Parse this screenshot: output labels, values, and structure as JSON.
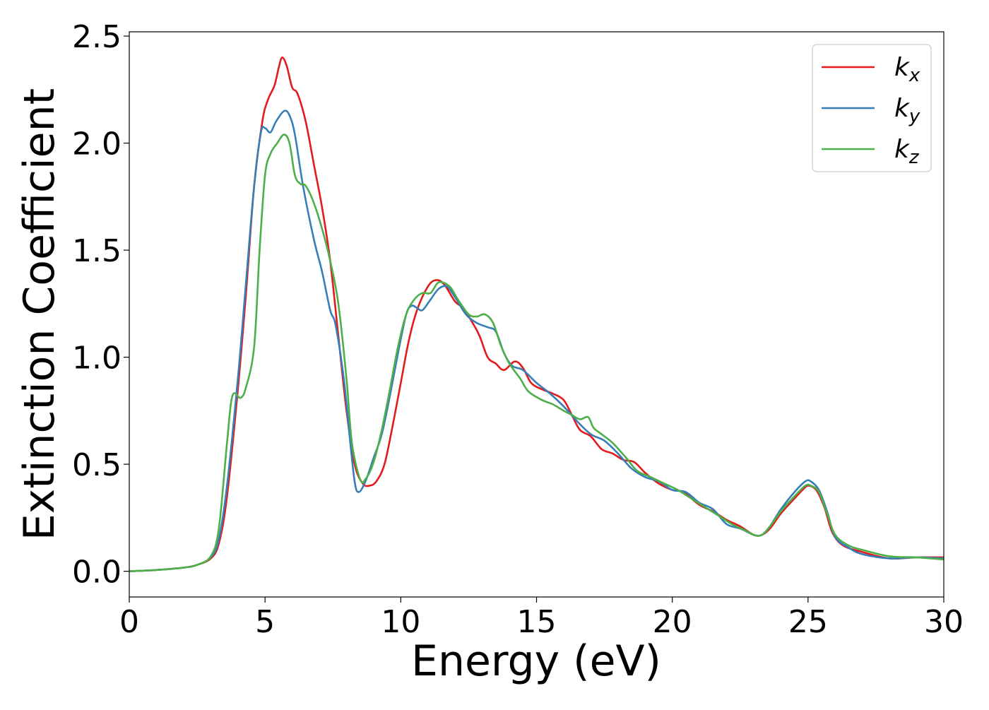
{
  "chart_data": {
    "type": "line",
    "title": "",
    "xlabel": "Energy (eV)",
    "ylabel": "Extinction Coefficient",
    "xlim": [
      0,
      30
    ],
    "ylim": [
      -0.12,
      2.52
    ],
    "xticks": [
      0,
      5,
      10,
      15,
      20,
      25,
      30
    ],
    "xtick_labels": [
      "0",
      "5",
      "10",
      "15",
      "20",
      "25",
      "30"
    ],
    "yticks": [
      0.0,
      0.5,
      1.0,
      1.5,
      2.0,
      2.5
    ],
    "ytick_labels": [
      "0.0",
      "0.5",
      "1.0",
      "1.5",
      "2.0",
      "2.5"
    ],
    "grid": false,
    "legend_position": "top-right",
    "series": [
      {
        "name": "k_x",
        "legend_base": "k",
        "legend_sub": "x",
        "color": "#e41a1c",
        "points": [
          [
            0,
            0.0
          ],
          [
            1,
            0.006
          ],
          [
            2,
            0.017
          ],
          [
            2.5,
            0.03
          ],
          [
            3,
            0.06
          ],
          [
            3.3,
            0.13
          ],
          [
            3.6,
            0.35
          ],
          [
            4,
            0.85
          ],
          [
            4.3,
            1.3
          ],
          [
            4.6,
            1.8
          ],
          [
            4.9,
            2.1
          ],
          [
            5.1,
            2.2
          ],
          [
            5.35,
            2.27
          ],
          [
            5.5,
            2.35
          ],
          [
            5.63,
            2.4
          ],
          [
            5.8,
            2.36
          ],
          [
            6,
            2.26
          ],
          [
            6.2,
            2.23
          ],
          [
            6.5,
            2.1
          ],
          [
            6.8,
            1.9
          ],
          [
            7.1,
            1.7
          ],
          [
            7.4,
            1.45
          ],
          [
            7.7,
            1.1
          ],
          [
            8,
            0.75
          ],
          [
            8.3,
            0.5
          ],
          [
            8.6,
            0.41
          ],
          [
            8.85,
            0.4
          ],
          [
            9.1,
            0.42
          ],
          [
            9.4,
            0.5
          ],
          [
            9.7,
            0.68
          ],
          [
            10,
            0.88
          ],
          [
            10.3,
            1.08
          ],
          [
            10.6,
            1.22
          ],
          [
            11,
            1.33
          ],
          [
            11.3,
            1.36
          ],
          [
            11.6,
            1.34
          ],
          [
            12,
            1.26
          ],
          [
            12.3,
            1.23
          ],
          [
            12.6,
            1.17
          ],
          [
            12.9,
            1.1
          ],
          [
            13.2,
            1.0
          ],
          [
            13.5,
            0.97
          ],
          [
            13.8,
            0.94
          ],
          [
            14.2,
            0.98
          ],
          [
            14.5,
            0.95
          ],
          [
            14.8,
            0.88
          ],
          [
            15.2,
            0.85
          ],
          [
            15.6,
            0.83
          ],
          [
            16,
            0.8
          ],
          [
            16.3,
            0.73
          ],
          [
            16.6,
            0.66
          ],
          [
            17,
            0.63
          ],
          [
            17.4,
            0.57
          ],
          [
            17.8,
            0.55
          ],
          [
            18.2,
            0.52
          ],
          [
            18.6,
            0.51
          ],
          [
            19,
            0.46
          ],
          [
            19.5,
            0.41
          ],
          [
            20,
            0.38
          ],
          [
            20.4,
            0.37
          ],
          [
            21,
            0.31
          ],
          [
            21.5,
            0.28
          ],
          [
            22,
            0.24
          ],
          [
            22.5,
            0.21
          ],
          [
            23,
            0.17
          ],
          [
            23.3,
            0.17
          ],
          [
            23.6,
            0.2
          ],
          [
            24,
            0.27
          ],
          [
            24.5,
            0.34
          ],
          [
            24.8,
            0.38
          ],
          [
            25,
            0.4
          ],
          [
            25.3,
            0.38
          ],
          [
            25.6,
            0.3
          ],
          [
            25.9,
            0.18
          ],
          [
            26.3,
            0.12
          ],
          [
            27,
            0.09
          ],
          [
            28,
            0.06
          ],
          [
            29,
            0.065
          ],
          [
            30,
            0.065
          ]
        ]
      },
      {
        "name": "k_y",
        "legend_base": "k",
        "legend_sub": "y",
        "color": "#377eb8",
        "points": [
          [
            0,
            0.0
          ],
          [
            1,
            0.006
          ],
          [
            2,
            0.017
          ],
          [
            2.5,
            0.03
          ],
          [
            3,
            0.065
          ],
          [
            3.3,
            0.15
          ],
          [
            3.6,
            0.4
          ],
          [
            4,
            0.9
          ],
          [
            4.3,
            1.35
          ],
          [
            4.6,
            1.8
          ],
          [
            4.85,
            2.05
          ],
          [
            5,
            2.07
          ],
          [
            5.2,
            2.05
          ],
          [
            5.4,
            2.1
          ],
          [
            5.7,
            2.15
          ],
          [
            5.9,
            2.13
          ],
          [
            6.1,
            2.04
          ],
          [
            6.4,
            1.8
          ],
          [
            6.8,
            1.55
          ],
          [
            7.1,
            1.4
          ],
          [
            7.4,
            1.22
          ],
          [
            7.6,
            1.15
          ],
          [
            7.9,
            0.9
          ],
          [
            8.1,
            0.65
          ],
          [
            8.3,
            0.42
          ],
          [
            8.45,
            0.37
          ],
          [
            8.7,
            0.42
          ],
          [
            9,
            0.53
          ],
          [
            9.3,
            0.64
          ],
          [
            9.6,
            0.82
          ],
          [
            9.9,
            1.02
          ],
          [
            10.2,
            1.2
          ],
          [
            10.4,
            1.24
          ],
          [
            10.6,
            1.23
          ],
          [
            10.8,
            1.22
          ],
          [
            11.1,
            1.27
          ],
          [
            11.4,
            1.32
          ],
          [
            11.7,
            1.33
          ],
          [
            12,
            1.28
          ],
          [
            12.4,
            1.2
          ],
          [
            12.8,
            1.16
          ],
          [
            13.2,
            1.14
          ],
          [
            13.5,
            1.12
          ],
          [
            13.8,
            1.02
          ],
          [
            14.1,
            0.96
          ],
          [
            14.5,
            0.94
          ],
          [
            15,
            0.88
          ],
          [
            15.5,
            0.83
          ],
          [
            16,
            0.77
          ],
          [
            16.5,
            0.7
          ],
          [
            17,
            0.64
          ],
          [
            17.5,
            0.61
          ],
          [
            18,
            0.55
          ],
          [
            18.5,
            0.48
          ],
          [
            19,
            0.44
          ],
          [
            19.5,
            0.42
          ],
          [
            20,
            0.38
          ],
          [
            20.5,
            0.37
          ],
          [
            21,
            0.32
          ],
          [
            21.5,
            0.29
          ],
          [
            22,
            0.22
          ],
          [
            22.5,
            0.2
          ],
          [
            23,
            0.17
          ],
          [
            23.3,
            0.17
          ],
          [
            23.6,
            0.21
          ],
          [
            24,
            0.29
          ],
          [
            24.5,
            0.37
          ],
          [
            24.9,
            0.42
          ],
          [
            25.1,
            0.42
          ],
          [
            25.4,
            0.38
          ],
          [
            25.7,
            0.28
          ],
          [
            26,
            0.16
          ],
          [
            26.5,
            0.11
          ],
          [
            27,
            0.08
          ],
          [
            28,
            0.06
          ],
          [
            29,
            0.065
          ],
          [
            30,
            0.06
          ]
        ]
      },
      {
        "name": "k_z",
        "legend_base": "k",
        "legend_sub": "z",
        "color": "#4daf4a",
        "points": [
          [
            0,
            0.0
          ],
          [
            1,
            0.006
          ],
          [
            2,
            0.017
          ],
          [
            2.5,
            0.03
          ],
          [
            3,
            0.07
          ],
          [
            3.3,
            0.2
          ],
          [
            3.6,
            0.6
          ],
          [
            3.8,
            0.82
          ],
          [
            4.1,
            0.81
          ],
          [
            4.3,
            0.86
          ],
          [
            4.6,
            1.05
          ],
          [
            4.8,
            1.5
          ],
          [
            5,
            1.85
          ],
          [
            5.2,
            1.95
          ],
          [
            5.45,
            2.0
          ],
          [
            5.7,
            2.04
          ],
          [
            5.9,
            2.0
          ],
          [
            6.1,
            1.85
          ],
          [
            6.3,
            1.81
          ],
          [
            6.5,
            1.8
          ],
          [
            6.8,
            1.72
          ],
          [
            7.1,
            1.6
          ],
          [
            7.4,
            1.45
          ],
          [
            7.7,
            1.25
          ],
          [
            8,
            0.9
          ],
          [
            8.2,
            0.6
          ],
          [
            8.5,
            0.43
          ],
          [
            8.7,
            0.43
          ],
          [
            9,
            0.51
          ],
          [
            9.3,
            0.66
          ],
          [
            9.6,
            0.85
          ],
          [
            9.9,
            1.05
          ],
          [
            10.2,
            1.2
          ],
          [
            10.5,
            1.27
          ],
          [
            10.8,
            1.3
          ],
          [
            11.1,
            1.3
          ],
          [
            11.4,
            1.35
          ],
          [
            11.8,
            1.33
          ],
          [
            12.1,
            1.27
          ],
          [
            12.5,
            1.2
          ],
          [
            12.8,
            1.19
          ],
          [
            13.1,
            1.2
          ],
          [
            13.4,
            1.16
          ],
          [
            13.7,
            1.05
          ],
          [
            14,
            0.97
          ],
          [
            14.4,
            0.9
          ],
          [
            14.7,
            0.84
          ],
          [
            15.2,
            0.8
          ],
          [
            15.6,
            0.78
          ],
          [
            16,
            0.75
          ],
          [
            16.3,
            0.73
          ],
          [
            16.6,
            0.71
          ],
          [
            16.9,
            0.72
          ],
          [
            17.1,
            0.67
          ],
          [
            17.4,
            0.64
          ],
          [
            17.8,
            0.6
          ],
          [
            18.3,
            0.53
          ],
          [
            18.7,
            0.47
          ],
          [
            19.2,
            0.44
          ],
          [
            19.7,
            0.41
          ],
          [
            20.2,
            0.38
          ],
          [
            20.7,
            0.34
          ],
          [
            21.2,
            0.3
          ],
          [
            21.7,
            0.26
          ],
          [
            22.2,
            0.22
          ],
          [
            22.7,
            0.19
          ],
          [
            23,
            0.17
          ],
          [
            23.3,
            0.17
          ],
          [
            23.6,
            0.21
          ],
          [
            24,
            0.28
          ],
          [
            24.5,
            0.35
          ],
          [
            24.9,
            0.4
          ],
          [
            25.1,
            0.4
          ],
          [
            25.4,
            0.37
          ],
          [
            25.7,
            0.27
          ],
          [
            26,
            0.17
          ],
          [
            26.5,
            0.12
          ],
          [
            27,
            0.1
          ],
          [
            28,
            0.07
          ],
          [
            29,
            0.065
          ],
          [
            30,
            0.055
          ]
        ]
      }
    ]
  }
}
